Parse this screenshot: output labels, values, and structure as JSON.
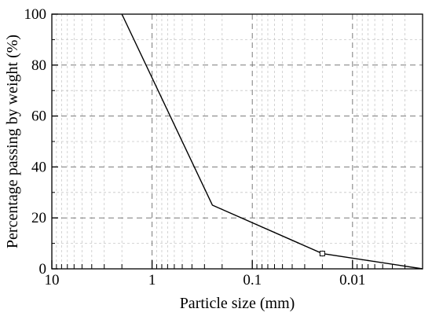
{
  "chart_data": {
    "type": "line",
    "title": "",
    "xlabel": "Particle size (mm)",
    "ylabel": "Percentage passing by weight (%)",
    "x_scale": "log",
    "x_reversed": true,
    "xlim": [
      10,
      0.002
    ],
    "ylim": [
      0,
      100
    ],
    "x_ticks": [
      10,
      1,
      0.1,
      0.01
    ],
    "x_tick_labels": [
      "10",
      "1",
      "0.1",
      "0.01"
    ],
    "y_ticks": [
      0,
      20,
      40,
      60,
      80,
      100
    ],
    "y_tick_labels": [
      "0",
      "20",
      "40",
      "60",
      "80",
      "100"
    ],
    "grid": true,
    "legend": "none",
    "series": [
      {
        "color": "#000000",
        "points": [
          {
            "x": 2,
            "y": 100
          },
          {
            "x": 0.25,
            "y": 25
          },
          {
            "x": 0.02,
            "y": 6,
            "marker": "square"
          },
          {
            "x": 0.002,
            "y": 0
          }
        ]
      }
    ]
  }
}
